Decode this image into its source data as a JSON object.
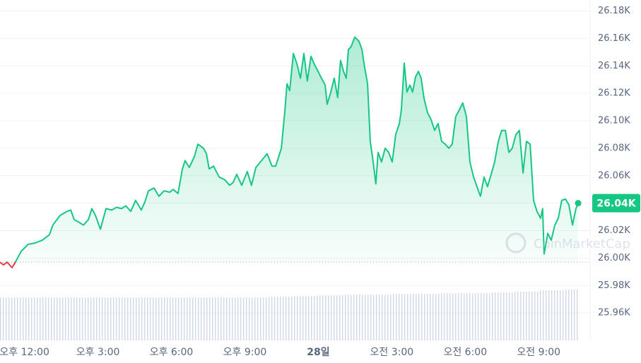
{
  "chart_data": {
    "type": "line",
    "color": "#16c784",
    "down_color": "#ea3943",
    "x": [
      -1.0,
      -0.86,
      -0.71,
      -0.51,
      -0.37,
      -0.13,
      0.15,
      0.44,
      0.73,
      1.02,
      1.16,
      1.45,
      1.74,
      1.89,
      2.03,
      2.23,
      2.41,
      2.61,
      2.75,
      2.9,
      3.1,
      3.33,
      3.56,
      3.76,
      3.96,
      4.14,
      4.34,
      4.54,
      4.77,
      4.92,
      5.06,
      5.29,
      5.49,
      5.7,
      5.93,
      6.07,
      6.27,
      6.45,
      6.56,
      6.73,
      6.94,
      7.08,
      7.31,
      7.43,
      7.54,
      7.72,
      7.95,
      8.18,
      8.38,
      8.52,
      8.67,
      8.87,
      9.1,
      9.27,
      9.45,
      9.68,
      9.91,
      10.11,
      10.26,
      10.49,
      10.63,
      10.72,
      10.83,
      10.98,
      11.12,
      11.27,
      11.41,
      11.55,
      11.7,
      11.84,
      11.99,
      12.13,
      12.28,
      12.36,
      12.51,
      12.65,
      12.79,
      12.91,
      13.03,
      13.14,
      13.23,
      13.34,
      13.49,
      13.66,
      13.78,
      13.89,
      14.01,
      14.12,
      14.24,
      14.35,
      14.44,
      14.58,
      14.73,
      14.87,
      15.02,
      15.16,
      15.31,
      15.39,
      15.51,
      15.62,
      15.74,
      15.85,
      15.97,
      16.09,
      16.2,
      16.32,
      16.46,
      16.6,
      16.75,
      16.89,
      17.04,
      17.18,
      17.33,
      17.47,
      17.61,
      17.76,
      17.9,
      18.05,
      18.19,
      18.34,
      18.48,
      18.62,
      18.77,
      18.91,
      19.06,
      19.2,
      19.35,
      19.49,
      19.64,
      19.78,
      19.92,
      20.07,
      20.21,
      20.36,
      20.5,
      20.65,
      20.79,
      20.93,
      21.08,
      21.16,
      21.22,
      21.37,
      21.51,
      21.66,
      21.8,
      21.94,
      22.09,
      22.23,
      22.38,
      22.52,
      22.61
    ],
    "values": [
      25997,
      25995,
      25997,
      25993,
      25997,
      26005,
      26010,
      26011,
      26013,
      26017,
      26024,
      26031,
      26034,
      26035,
      26028,
      26026,
      26024,
      26028,
      26036,
      26031,
      26021,
      26036,
      26035,
      26037,
      26036,
      26038,
      26034,
      26042,
      26035,
      26041,
      26049,
      26051,
      26045,
      26049,
      26048,
      26050,
      26047,
      26065,
      26071,
      26066,
      26074,
      26083,
      26080,
      26076,
      26065,
      26067,
      26059,
      26057,
      26053,
      26055,
      26061,
      26053,
      26063,
      26053,
      26066,
      26071,
      26076,
      26067,
      26067,
      26080,
      26106,
      26127,
      26122,
      26149,
      26142,
      26131,
      26149,
      26129,
      26147,
      26141,
      26136,
      26131,
      26126,
      26112,
      26121,
      26131,
      26117,
      26144,
      26136,
      26131,
      26152,
      26154,
      26161,
      26158,
      26152,
      26139,
      26127,
      26085,
      26070,
      26054,
      26077,
      26070,
      26080,
      26077,
      26070,
      26090,
      26098,
      26108,
      26142,
      26121,
      26126,
      26121,
      26132,
      26136,
      26131,
      26116,
      26106,
      26101,
      26093,
      26098,
      26085,
      26083,
      26080,
      26083,
      26103,
      26108,
      26113,
      26103,
      26070,
      26059,
      26052,
      26045,
      26059,
      26052,
      26061,
      26070,
      26085,
      26093,
      26093,
      26077,
      26080,
      26090,
      26093,
      26062,
      26085,
      26083,
      26042,
      26034,
      26029,
      26036,
      26003,
      26018,
      26013,
      26024,
      26029,
      26042,
      26043,
      26039,
      26024,
      26036,
      26040
    ],
    "current_price_label": "26.04K",
    "open_price": 25997,
    "xlim": [
      -1,
      23.1
    ],
    "xticks": [
      {
        "value": 0,
        "label": "오후 12:00"
      },
      {
        "value": 3,
        "label": "오후 3:00"
      },
      {
        "value": 6,
        "label": "오후 6:00"
      },
      {
        "value": 9,
        "label": "오후 9:00"
      },
      {
        "value": 12,
        "label": "28일"
      },
      {
        "value": 15,
        "label": "오전 3:00"
      },
      {
        "value": 18,
        "label": "오전 6:00"
      },
      {
        "value": 21,
        "label": "오전 9:00"
      }
    ],
    "ylim": [
      25940,
      26188
    ],
    "yticks": [
      {
        "value": 25960,
        "label": "25.96K"
      },
      {
        "value": 25980,
        "label": "25.98K"
      },
      {
        "value": 26000,
        "label": "26.00K"
      },
      {
        "value": 26020,
        "label": "26.02K"
      },
      {
        "value": 26040,
        "label": "26.04K"
      },
      {
        "value": 26060,
        "label": "26.06K"
      },
      {
        "value": 26080,
        "label": "26.08K"
      },
      {
        "value": 26100,
        "label": "26.10K"
      },
      {
        "value": 26120,
        "label": "26.12K"
      },
      {
        "value": 26140,
        "label": "26.14K"
      },
      {
        "value": 26160,
        "label": "26.16K"
      },
      {
        "value": 26180,
        "label": "26.18K"
      }
    ],
    "grid": true,
    "volume": {
      "x": [
        -1,
        0,
        1,
        2,
        3,
        4,
        5,
        6,
        7,
        8,
        9,
        10,
        11,
        12,
        13,
        14,
        15,
        16,
        17,
        18,
        19,
        20,
        21,
        22
      ],
      "values": [
        59,
        59,
        59,
        59,
        59,
        59,
        59,
        59,
        59,
        59,
        59,
        60,
        61,
        62,
        63,
        63,
        64,
        64,
        65,
        65,
        66,
        67,
        69,
        70
      ],
      "ylim": [
        0,
        70
      ]
    },
    "watermark": "CoinMarketCap"
  }
}
